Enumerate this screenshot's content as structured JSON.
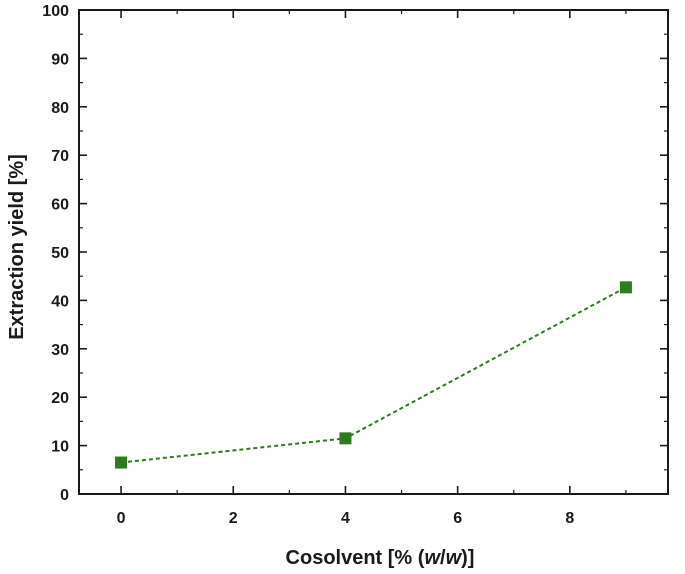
{
  "chart_data": {
    "type": "line",
    "xlabel_parts": [
      "Cosolvent [% (",
      "w",
      "/",
      "w",
      ")]"
    ],
    "ylabel": "Extraction yield [%]",
    "xlim": [
      -0.75,
      9.75
    ],
    "ylim": [
      0,
      100
    ],
    "xticks": [
      0,
      2,
      4,
      6,
      8
    ],
    "yticks": [
      0,
      10,
      20,
      30,
      40,
      50,
      60,
      70,
      80,
      90,
      100
    ],
    "grid": false,
    "series": [
      {
        "x": [
          0,
          4,
          9
        ],
        "y": [
          6.5,
          11.5,
          42.7
        ],
        "color": "#2e7a1f",
        "line_style": "dashed",
        "marker": "square"
      }
    ]
  }
}
